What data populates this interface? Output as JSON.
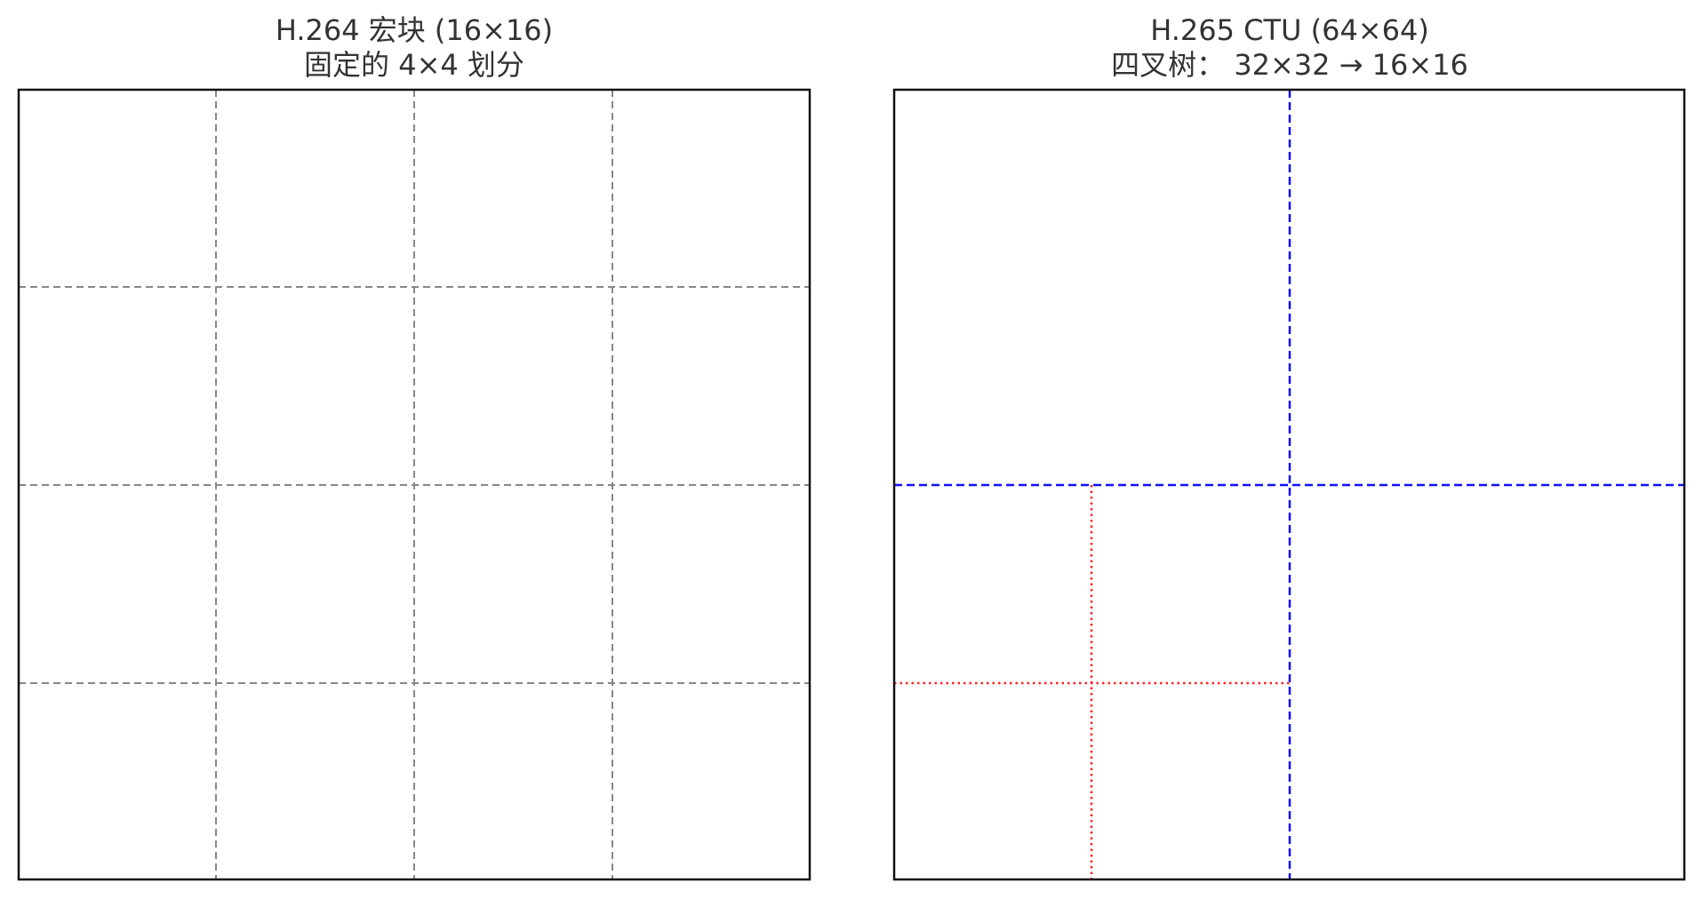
{
  "panels": [
    {
      "id": "h264",
      "title_line1": "H.264 宏块 (16×16)",
      "title_line2": "固定的 4×4 划分",
      "grid_divisions": 4,
      "grid_color": "#888888"
    },
    {
      "id": "h265",
      "title_line1": "H.265 CTU (64×64)",
      "title_line2": "四叉树： 32×32 → 16×16",
      "first_split_color": "#1010ff",
      "second_split_color": "#ff2020",
      "second_split_quadrant": "bottom-left"
    }
  ]
}
